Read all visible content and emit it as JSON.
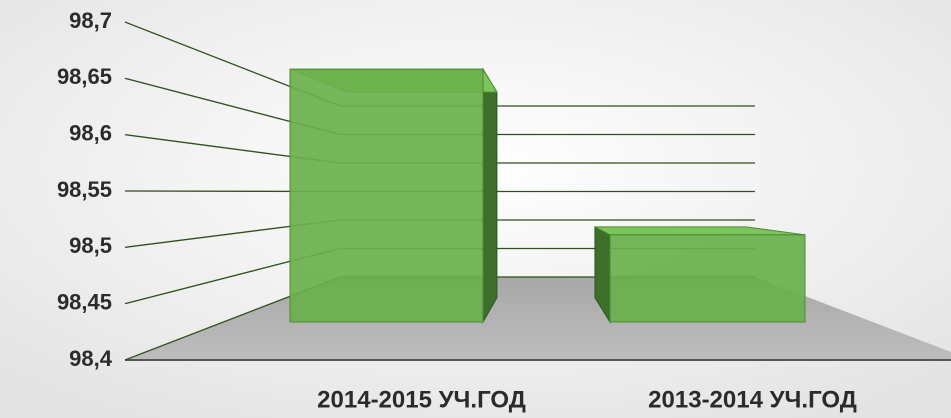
{
  "chart_data": {
    "type": "bar3d",
    "categories": [
      "2014-2015 УЧ.ГОД",
      "2013-2014 УЧ.ГОД"
    ],
    "values": [
      98.69,
      98.5
    ],
    "color": "#6ab04c",
    "ylim": [
      98.4,
      98.7
    ],
    "yticks": [
      {
        "value": 98.4,
        "label": "98,4"
      },
      {
        "value": 98.45,
        "label": "98,45"
      },
      {
        "value": 98.5,
        "label": "98,5"
      },
      {
        "value": 98.55,
        "label": "98,55"
      },
      {
        "value": 98.6,
        "label": "98,6"
      },
      {
        "value": 98.65,
        "label": "98,65"
      },
      {
        "value": 98.7,
        "label": "98,7"
      }
    ],
    "grid": true
  }
}
